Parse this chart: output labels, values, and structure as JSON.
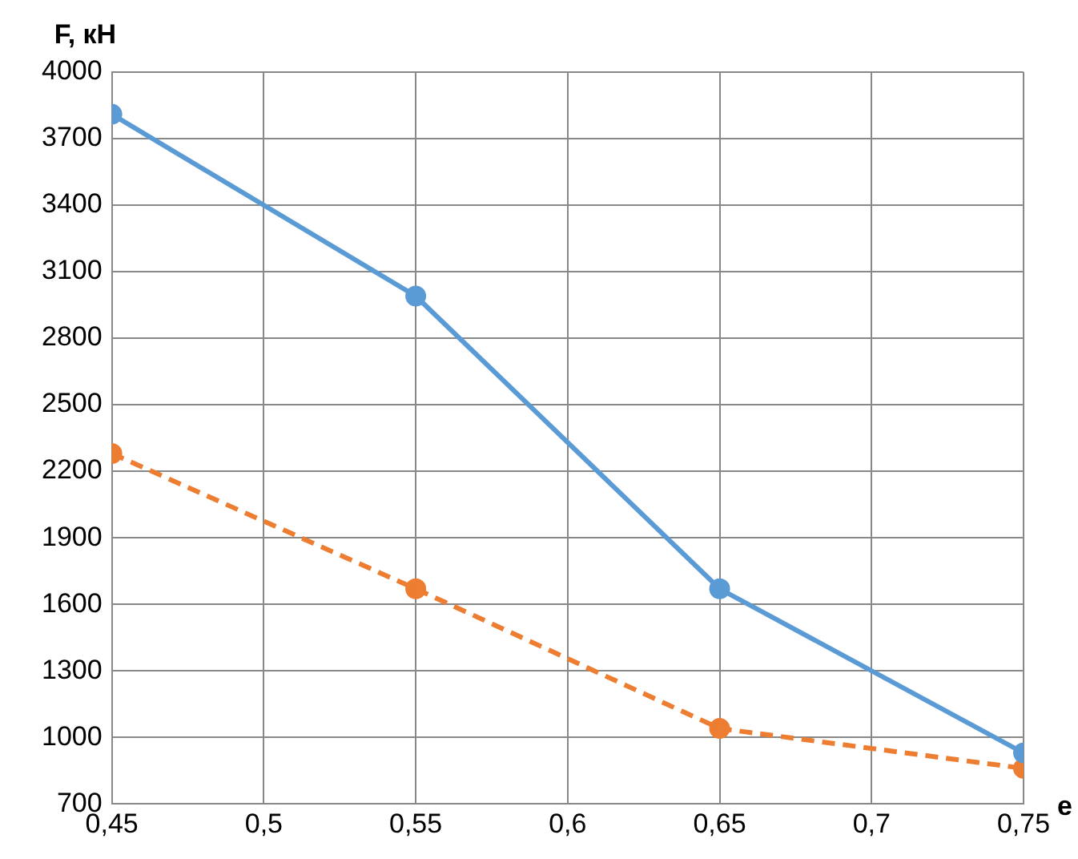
{
  "chart_data": {
    "type": "line",
    "xlabel": "e",
    "ylabel": "F, кН",
    "x": [
      0.45,
      0.55,
      0.65,
      0.75
    ],
    "series": [
      {
        "color": "#5b9bd5",
        "values": [
          3810,
          2990,
          1670,
          930
        ],
        "line_style": "solid"
      },
      {
        "color": "#ed7d31",
        "values": [
          2280,
          1670,
          1040,
          860
        ],
        "line_style": "dashed"
      }
    ],
    "xlim": [
      0.45,
      0.75
    ],
    "xticks": [
      {
        "value": 0.45,
        "label": "0,45"
      },
      {
        "value": 0.5,
        "label": "0,5"
      },
      {
        "value": 0.55,
        "label": "0,55"
      },
      {
        "value": 0.6,
        "label": "0,6"
      },
      {
        "value": 0.65,
        "label": "0,65"
      },
      {
        "value": 0.7,
        "label": "0,7"
      },
      {
        "value": 0.75,
        "label": "0,75"
      }
    ],
    "ylim": [
      700,
      4000
    ],
    "yticks": [
      700,
      1000,
      1300,
      1600,
      1900,
      2200,
      2500,
      2800,
      3100,
      3400,
      3700,
      4000
    ],
    "grid": true,
    "legend": false,
    "marker": "circle"
  }
}
